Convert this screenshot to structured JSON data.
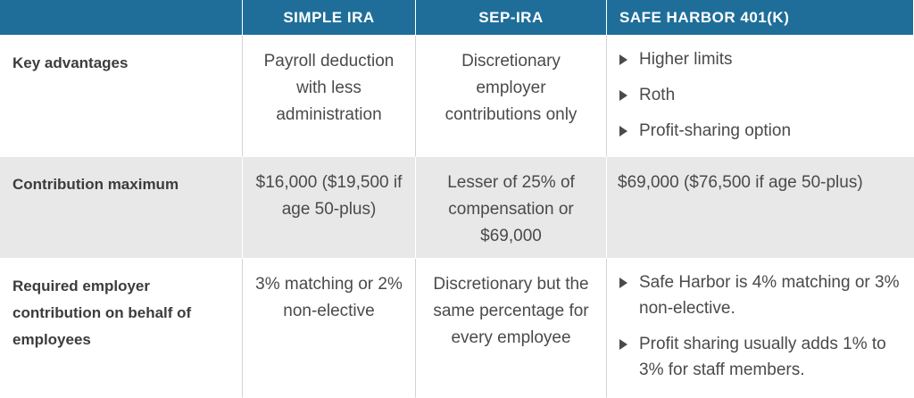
{
  "headers": [
    "",
    "SIMPLE IRA",
    "SEP-IRA",
    "SAFE HARBOR 401(K)"
  ],
  "rows": [
    {
      "label": "Key advantages",
      "simple": "Payroll deduction with less administration",
      "sep": "Discretionary employer contributions only",
      "safe_bullets": [
        "Higher limits",
        "Roth",
        "Profit-sharing option"
      ]
    },
    {
      "label": "Contribution maximum",
      "simple": "$16,000 ($19,500 if age 50-plus)",
      "sep": "Lesser of 25% of compensation or $69,000",
      "safe_text": "$69,000 ($76,500 if age 50-plus)"
    },
    {
      "label": "Required employer contribution on behalf of employees",
      "simple": "3% matching or 2% non-elective",
      "sep": "Discretionary but the same percentage for every employee",
      "safe_bullets": [
        "Safe Harbor is 4% matching or 3% non-elective.",
        "Profit sharing usually adds 1% to 3% for staff members."
      ]
    }
  ]
}
